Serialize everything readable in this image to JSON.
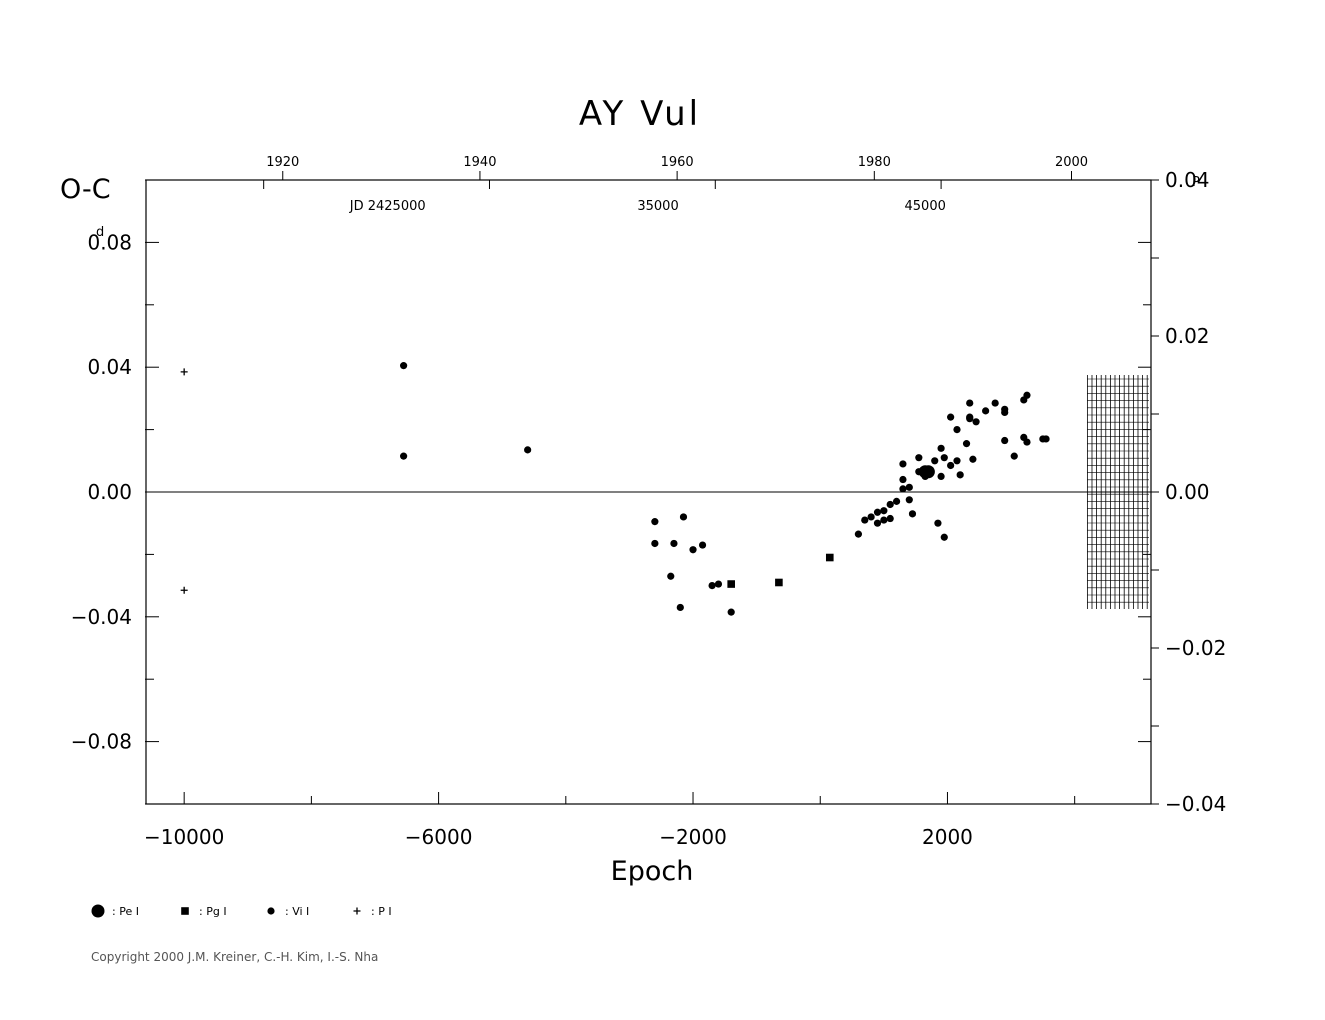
{
  "chart_data": {
    "type": "scatter",
    "title": "AY  Vul",
    "ylabel": "O-C",
    "ylabel_unit": "d",
    "right_unit": "P",
    "xlabel": "Epoch",
    "xlim": [
      -10600,
      5200
    ],
    "ylim": [
      -0.1,
      0.1
    ],
    "right_ylim": [
      -0.04,
      0.04
    ],
    "grid": false,
    "zero_line": true,
    "y_ticks": [
      {
        "value": 0.08,
        "label": "0.08"
      },
      {
        "value": 0.04,
        "label": "0.04"
      },
      {
        "value": 0.0,
        "label": "0.00"
      },
      {
        "value": -0.04,
        "label": "−0.04"
      },
      {
        "value": -0.08,
        "label": "−0.08"
      }
    ],
    "right_ticks": [
      {
        "value": 0.04,
        "label": "0.04"
      },
      {
        "value": 0.02,
        "label": "0.02"
      },
      {
        "value": 0.0,
        "label": "0.00"
      },
      {
        "value": -0.02,
        "label": "−0.02"
      },
      {
        "value": -0.04,
        "label": "−0.04"
      }
    ],
    "x_ticks": [
      {
        "value": -10000,
        "label": "−10000"
      },
      {
        "value": -6000,
        "label": "−6000"
      },
      {
        "value": -2000,
        "label": "−2000"
      },
      {
        "value": 2000,
        "label": "2000"
      }
    ],
    "year_ticks": [
      {
        "epoch": -8450,
        "label": "1920"
      },
      {
        "epoch": -5350,
        "label": "1940"
      },
      {
        "epoch": -2250,
        "label": "1960"
      },
      {
        "epoch": 850,
        "label": "1980"
      },
      {
        "epoch": 3950,
        "label": "2000"
      }
    ],
    "jd_labels": [
      {
        "epoch": -6800,
        "label": "JD 2425000"
      },
      {
        "epoch": -2550,
        "label": "35000"
      },
      {
        "epoch": 1650,
        "label": "45000"
      }
    ],
    "hatched_region": {
      "x_from": 4200,
      "x_to": 5200,
      "y_from": -0.0375,
      "y_to": 0.0375
    },
    "legend": [
      {
        "symbol": "Pe",
        "label": ": Pe  I"
      },
      {
        "symbol": "Pg",
        "label": ": Pg  I"
      },
      {
        "symbol": "Vi",
        "label": ": Vi  I"
      },
      {
        "symbol": "P",
        "label": ": P  I"
      }
    ],
    "series": [
      {
        "symbol": "P",
        "points": [
          [
            -10000,
            0.0385
          ],
          [
            -10000,
            -0.0315
          ]
        ]
      },
      {
        "symbol": "Pg",
        "points": [
          [
            -1400,
            -0.0295
          ],
          [
            -650,
            -0.029
          ],
          [
            150,
            -0.021
          ]
        ]
      },
      {
        "symbol": "Pe",
        "points": [
          [
            1650,
            0.0065
          ],
          [
            1700,
            0.0065
          ]
        ]
      },
      {
        "symbol": "Vi",
        "points": [
          [
            -6550,
            0.0405
          ],
          [
            -6550,
            0.0115
          ],
          [
            -4600,
            0.0135
          ],
          [
            -2600,
            -0.0165
          ],
          [
            -2600,
            -0.0095
          ],
          [
            -2300,
            -0.0165
          ],
          [
            -2150,
            -0.008
          ],
          [
            -2000,
            -0.0185
          ],
          [
            -1850,
            -0.017
          ],
          [
            -2350,
            -0.027
          ],
          [
            -2200,
            -0.037
          ],
          [
            -1700,
            -0.03
          ],
          [
            -1400,
            -0.0385
          ],
          [
            -1600,
            -0.0295
          ],
          [
            600,
            -0.0135
          ],
          [
            700,
            -0.009
          ],
          [
            800,
            -0.008
          ],
          [
            900,
            -0.0065
          ],
          [
            900,
            -0.01
          ],
          [
            1000,
            -0.006
          ],
          [
            1000,
            -0.009
          ],
          [
            1100,
            -0.004
          ],
          [
            1100,
            -0.0085
          ],
          [
            1200,
            -0.003
          ],
          [
            1300,
            0.004
          ],
          [
            1300,
            0.001
          ],
          [
            1300,
            0.009
          ],
          [
            1400,
            0.0015
          ],
          [
            1400,
            -0.0025
          ],
          [
            1450,
            -0.007
          ],
          [
            1550,
            0.0065
          ],
          [
            1550,
            0.011
          ],
          [
            1650,
            0.005
          ],
          [
            1800,
            0.01
          ],
          [
            1850,
            -0.01
          ],
          [
            1900,
            0.014
          ],
          [
            1900,
            0.005
          ],
          [
            1950,
            -0.0145
          ],
          [
            1950,
            0.011
          ],
          [
            2050,
            0.024
          ],
          [
            2050,
            0.0085
          ],
          [
            2150,
            0.02
          ],
          [
            2150,
            0.01
          ],
          [
            2200,
            0.0055
          ],
          [
            2300,
            0.0155
          ],
          [
            2350,
            0.0285
          ],
          [
            2350,
            0.024
          ],
          [
            2350,
            0.0235
          ],
          [
            2400,
            0.0105
          ],
          [
            2450,
            0.0225
          ],
          [
            2600,
            0.026
          ],
          [
            2750,
            0.0285
          ],
          [
            2900,
            0.0265
          ],
          [
            2900,
            0.0255
          ],
          [
            2900,
            0.0165
          ],
          [
            3050,
            0.0115
          ],
          [
            3200,
            0.0295
          ],
          [
            3200,
            0.0175
          ],
          [
            3250,
            0.031
          ],
          [
            3250,
            0.016
          ],
          [
            3500,
            0.017
          ],
          [
            3550,
            0.017
          ]
        ]
      }
    ]
  },
  "copyright": "Copyright 2000 J.M. Kreiner, C.-H. Kim, I.-S. Nha"
}
